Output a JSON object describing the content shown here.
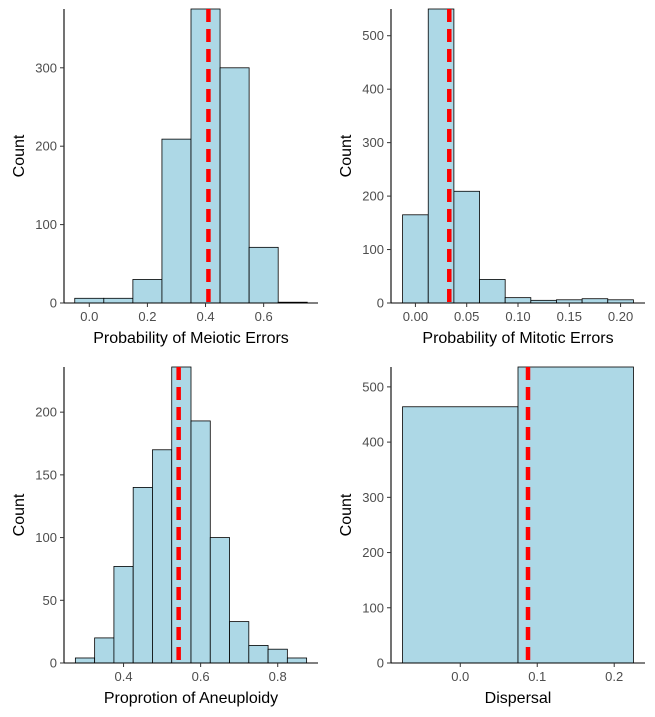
{
  "chart_data": [
    {
      "type": "bar",
      "subtype": "histogram",
      "xlabel": "Probability of Meiotic Errors",
      "ylabel": "Count",
      "bin_width": 0.1,
      "bins": [
        {
          "x0": -0.05,
          "x1": 0.05,
          "count": 6
        },
        {
          "x0": 0.05,
          "x1": 0.15,
          "count": 6
        },
        {
          "x0": 0.15,
          "x1": 0.25,
          "count": 30
        },
        {
          "x0": 0.25,
          "x1": 0.35,
          "count": 209
        },
        {
          "x0": 0.35,
          "x1": 0.45,
          "count": 375
        },
        {
          "x0": 0.45,
          "x1": 0.55,
          "count": 300
        },
        {
          "x0": 0.55,
          "x1": 0.65,
          "count": 71
        },
        {
          "x0": 0.65,
          "x1": 0.75,
          "count": 1
        }
      ],
      "xlim": [
        -0.087,
        0.787
      ],
      "ylim": [
        0,
        375
      ],
      "xticks": [
        0.0,
        0.2,
        0.4,
        0.6
      ],
      "xtick_labels": [
        "0.0",
        "0.2",
        "0.4",
        "0.6"
      ],
      "yticks": [
        0,
        100,
        200,
        300
      ],
      "ytick_labels": [
        "0",
        "100",
        "200",
        "300"
      ],
      "reference_line": 0.41,
      "colors": {
        "fill": "#add8e6",
        "stroke": "#000000",
        "reference_line": "#ff0000"
      }
    },
    {
      "type": "bar",
      "subtype": "histogram",
      "xlabel": "Probability of Mitotic Errors",
      "ylabel": "Count",
      "bin_width": 0.025,
      "bins": [
        {
          "x0": -0.0125,
          "x1": 0.0125,
          "count": 165
        },
        {
          "x0": 0.0125,
          "x1": 0.0375,
          "count": 550
        },
        {
          "x0": 0.0375,
          "x1": 0.0625,
          "count": 209
        },
        {
          "x0": 0.0625,
          "x1": 0.0875,
          "count": 44
        },
        {
          "x0": 0.0875,
          "x1": 0.1125,
          "count": 10
        },
        {
          "x0": 0.1125,
          "x1": 0.1375,
          "count": 5
        },
        {
          "x0": 0.1375,
          "x1": 0.1625,
          "count": 6
        },
        {
          "x0": 0.1625,
          "x1": 0.1875,
          "count": 8
        },
        {
          "x0": 0.1875,
          "x1": 0.2125,
          "count": 6
        }
      ],
      "xlim": [
        -0.0238,
        0.2238
      ],
      "ylim": [
        0,
        550
      ],
      "xticks": [
        0.0,
        0.05,
        0.1,
        0.15,
        0.2
      ],
      "xtick_labels": [
        "0.00",
        "0.05",
        "0.10",
        "0.15",
        "0.20"
      ],
      "yticks": [
        0,
        100,
        200,
        300,
        400,
        500
      ],
      "ytick_labels": [
        "0",
        "100",
        "200",
        "300",
        "400",
        "500"
      ],
      "reference_line": 0.033,
      "colors": {
        "fill": "#add8e6",
        "stroke": "#000000",
        "reference_line": "#ff0000"
      }
    },
    {
      "type": "bar",
      "subtype": "histogram",
      "xlabel": "Proprotion of Aneuploidy",
      "ylabel": "Count",
      "bin_width": 0.05,
      "bins": [
        {
          "x0": 0.275,
          "x1": 0.325,
          "count": 4
        },
        {
          "x0": 0.325,
          "x1": 0.375,
          "count": 20
        },
        {
          "x0": 0.375,
          "x1": 0.425,
          "count": 77
        },
        {
          "x0": 0.425,
          "x1": 0.475,
          "count": 140
        },
        {
          "x0": 0.475,
          "x1": 0.525,
          "count": 170
        },
        {
          "x0": 0.525,
          "x1": 0.575,
          "count": 236
        },
        {
          "x0": 0.575,
          "x1": 0.625,
          "count": 193
        },
        {
          "x0": 0.625,
          "x1": 0.675,
          "count": 100
        },
        {
          "x0": 0.675,
          "x1": 0.725,
          "count": 33
        },
        {
          "x0": 0.725,
          "x1": 0.775,
          "count": 14
        },
        {
          "x0": 0.775,
          "x1": 0.825,
          "count": 11
        },
        {
          "x0": 0.825,
          "x1": 0.875,
          "count": 4
        }
      ],
      "xlim": [
        0.2455,
        0.9045
      ],
      "ylim": [
        0,
        236
      ],
      "xticks": [
        0.4,
        0.6,
        0.8
      ],
      "xtick_labels": [
        "0.4",
        "0.6",
        "0.8"
      ],
      "yticks": [
        0,
        50,
        100,
        150,
        200
      ],
      "ytick_labels": [
        "0",
        "50",
        "100",
        "150",
        "200"
      ],
      "reference_line": 0.543,
      "colors": {
        "fill": "#add8e6",
        "stroke": "#000000",
        "reference_line": "#ff0000"
      }
    },
    {
      "type": "bar",
      "subtype": "histogram",
      "xlabel": "Dispersal",
      "ylabel": "Count",
      "bin_width": 0.15,
      "bins": [
        {
          "x0": -0.075,
          "x1": 0.075,
          "count": 464
        },
        {
          "x0": 0.075,
          "x1": 0.225,
          "count": 536
        }
      ],
      "xlim": [
        -0.09,
        0.24
      ],
      "ylim": [
        0,
        536
      ],
      "xticks": [
        0.0,
        0.1,
        0.2
      ],
      "xtick_labels": [
        "0.0",
        "0.1",
        "0.2"
      ],
      "yticks": [
        0,
        100,
        200,
        300,
        400,
        500
      ],
      "ytick_labels": [
        "0",
        "100",
        "200",
        "300",
        "400",
        "500"
      ],
      "reference_line": 0.088,
      "colors": {
        "fill": "#add8e6",
        "stroke": "#000000",
        "reference_line": "#ff0000"
      }
    }
  ]
}
